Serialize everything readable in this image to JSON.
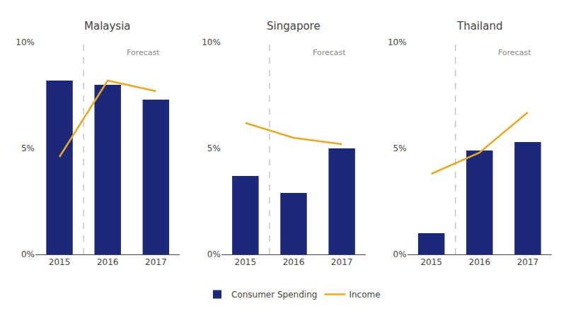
{
  "chart_data": [
    {
      "type": "bar",
      "title": "Malaysia",
      "categories": [
        "2015",
        "2016",
        "2017"
      ],
      "series": [
        {
          "name": "Consumer Spending",
          "type": "bar",
          "color": "#1c2878",
          "values": [
            8.2,
            8.0,
            7.3
          ]
        },
        {
          "name": "Income",
          "type": "line",
          "color": "#E8A820",
          "values": [
            4.6,
            8.2,
            7.7
          ]
        }
      ],
      "annotations": [
        "Forecast"
      ],
      "ylim": [
        0,
        10
      ],
      "yticks": [
        {
          "value": 0,
          "label": "0%"
        },
        {
          "value": 5,
          "label": "5%"
        },
        {
          "value": 10,
          "label": "10%"
        }
      ],
      "grid": false,
      "legend": "bottom"
    },
    {
      "type": "bar",
      "title": "Singapore",
      "categories": [
        "2015",
        "2016",
        "2017"
      ],
      "series": [
        {
          "name": "Consumer Spending",
          "type": "bar",
          "color": "#1c2878",
          "values": [
            3.7,
            2.9,
            5.0
          ]
        },
        {
          "name": "Income",
          "type": "line",
          "color": "#E8A820",
          "values": [
            6.2,
            5.5,
            5.2
          ]
        }
      ],
      "annotations": [
        "Forecast"
      ],
      "ylim": [
        0,
        10
      ],
      "yticks": [
        {
          "value": 0,
          "label": "0%"
        },
        {
          "value": 5,
          "label": "5%"
        },
        {
          "value": 10,
          "label": "10%"
        }
      ],
      "grid": false,
      "legend": "bottom"
    },
    {
      "type": "bar",
      "title": "Thailand",
      "categories": [
        "2015",
        "2016",
        "2017"
      ],
      "series": [
        {
          "name": "Consumer Spending",
          "type": "bar",
          "color": "#1c2878",
          "values": [
            1.0,
            4.9,
            5.3
          ]
        },
        {
          "name": "Income",
          "type": "line",
          "color": "#E8A820",
          "values": [
            3.8,
            4.8,
            6.7
          ]
        }
      ],
      "annotations": [
        "Forecast"
      ],
      "ylim": [
        0,
        10
      ],
      "yticks": [
        {
          "value": 0,
          "label": "0%"
        },
        {
          "value": 5,
          "label": "5%"
        },
        {
          "value": 10,
          "label": "10%"
        }
      ],
      "grid": false,
      "legend": "bottom"
    }
  ]
}
